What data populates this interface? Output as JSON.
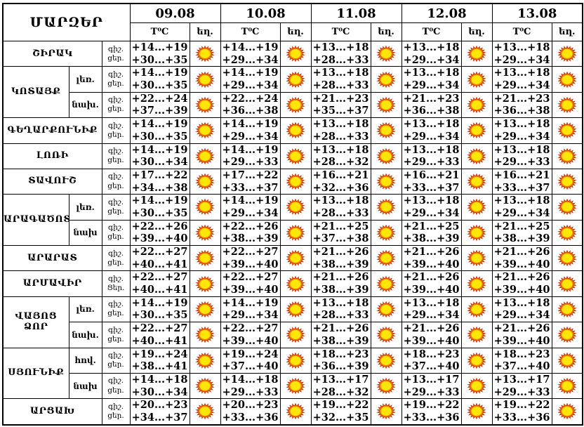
{
  "title": "ՄԱՐԶԵՐ",
  "dates": [
    "09.08",
    "10.08",
    "11.08",
    "12.08",
    "13.08"
  ],
  "col_headers": {
    "temperature": "T⁰C",
    "weather": "եղ."
  },
  "weather_icon": "sun",
  "colors": {
    "border": "#000000",
    "text": "#000000",
    "sun_core": "#ffe606",
    "sun_rays": "#e8500a",
    "sun_ring": "#f08000"
  },
  "regions": [
    {
      "name": "ՇԻՐԱԿ",
      "zones": [
        {
          "zone": "",
          "night_label": "գիշ.",
          "day_label": "ցեր.",
          "cells": [
            {
              "night": "+14...+19",
              "day": "+30...+35",
              "weather": "sun"
            },
            {
              "night": "+14...+19",
              "day": "+29...+34",
              "weather": "sun"
            },
            {
              "night": "+13...+18",
              "day": "+28...+33",
              "weather": "sun"
            },
            {
              "night": "+13...+18",
              "day": "+29...+34",
              "weather": "sun"
            },
            {
              "night": "+13...+18",
              "day": "+29...+34",
              "weather": "sun"
            }
          ]
        }
      ]
    },
    {
      "name": "ԿՈՏԱՅՔ",
      "zones": [
        {
          "zone": "լեռ.",
          "night_label": "գիշ.",
          "day_label": "ցեր.",
          "cells": [
            {
              "night": "+14...+19",
              "day": "+30...+35",
              "weather": "sun"
            },
            {
              "night": "+14...+19",
              "day": "+29...+34",
              "weather": "sun"
            },
            {
              "night": "+13...+18",
              "day": "+28...+33",
              "weather": "sun"
            },
            {
              "night": "+13...+18",
              "day": "+29...+34",
              "weather": "sun"
            },
            {
              "night": "+13...+18",
              "day": "+29...+34",
              "weather": "sun"
            }
          ]
        },
        {
          "zone": "նախ.",
          "night_label": "գիշ.",
          "day_label": "ցեր.",
          "cells": [
            {
              "night": "+22...+24",
              "day": "+37...+39",
              "weather": "sun"
            },
            {
              "night": "+22...+24",
              "day": "+36...+38",
              "weather": "sun"
            },
            {
              "night": "+21...+23",
              "day": "+35...+37",
              "weather": "sun"
            },
            {
              "night": "+21...+23",
              "day": "+36...+38",
              "weather": "sun"
            },
            {
              "night": "+21...+23",
              "day": "+36...+38",
              "weather": "sun"
            }
          ]
        }
      ]
    },
    {
      "name": "ԳԵՂԱՐՔՈՒՆԻՔ",
      "zones": [
        {
          "zone": "",
          "night_label": "գիշ.",
          "day_label": "ցեր.",
          "cells": [
            {
              "night": "+14...+19",
              "day": "+30...+35",
              "weather": "sun"
            },
            {
              "night": "+14...+19",
              "day": "+29...+34",
              "weather": "sun"
            },
            {
              "night": "+13...+18",
              "day": "+28...+33",
              "weather": "sun"
            },
            {
              "night": "+13...+18",
              "day": "+29...+34",
              "weather": "sun"
            },
            {
              "night": "+13...+18",
              "day": "+29...+34",
              "weather": "sun"
            }
          ]
        }
      ]
    },
    {
      "name": "ԼՈՌԻ",
      "zones": [
        {
          "zone": "",
          "night_label": "գիշ.",
          "day_label": "ցեր.",
          "cells": [
            {
              "night": "+14...+19",
              "day": "+30...+34",
              "weather": "sun"
            },
            {
              "night": "+14...+19",
              "day": "+29...+33",
              "weather": "sun"
            },
            {
              "night": "+13...+18",
              "day": "+28...+32",
              "weather": "sun"
            },
            {
              "night": "+13...+18",
              "day": "+29...+33",
              "weather": "sun"
            },
            {
              "night": "+13...+18",
              "day": "+29...+33",
              "weather": "sun"
            }
          ]
        }
      ]
    },
    {
      "name": "ՏԱՎՈՒՇ",
      "zones": [
        {
          "zone": "",
          "night_label": "գիշ.",
          "day_label": "ցեր.",
          "cells": [
            {
              "night": "+17...+22",
              "day": "+34...+38",
              "weather": "sun"
            },
            {
              "night": "+17...+22",
              "day": "+33...+37",
              "weather": "sun"
            },
            {
              "night": "+16...+21",
              "day": "+32...+36",
              "weather": "sun"
            },
            {
              "night": "+16...+21",
              "day": "+33...+37",
              "weather": "sun"
            },
            {
              "night": "+16...+21",
              "day": "+33...+37",
              "weather": "sun"
            }
          ]
        }
      ]
    },
    {
      "name": "ԱՐԱԳԱԾՈՏՆ",
      "zones": [
        {
          "zone": "լեռ.",
          "night_label": "գիշ.",
          "day_label": "ցեր.",
          "cells": [
            {
              "night": "+14...+19",
              "day": "+30...+35",
              "weather": "sun"
            },
            {
              "night": "+14...+19",
              "day": "+29...+34",
              "weather": "sun"
            },
            {
              "night": "+13...+18",
              "day": "+28...+33",
              "weather": "sun"
            },
            {
              "night": "+13...+18",
              "day": "+29...+34",
              "weather": "sun"
            },
            {
              "night": "+13...+18",
              "day": "+29...+34",
              "weather": "sun"
            }
          ]
        },
        {
          "zone": "նախ",
          "night_label": "գիշ.",
          "day_label": "ցեր.",
          "cells": [
            {
              "night": "+22...+26",
              "day": "+39...+40",
              "weather": "sun"
            },
            {
              "night": "+22...+26",
              "day": "+38...+39",
              "weather": "sun"
            },
            {
              "night": "+21...+25",
              "day": "+37...+38",
              "weather": "sun"
            },
            {
              "night": "+21...+25",
              "day": "+38...+39",
              "weather": "sun"
            },
            {
              "night": "+21...+25",
              "day": "+38...+39",
              "weather": "sun"
            }
          ]
        }
      ]
    },
    {
      "name": "ԱՐԱՐԱՏ",
      "zones": [
        {
          "zone": "",
          "night_label": "գիշ.",
          "day_label": "ցեր.",
          "cells": [
            {
              "night": "+22...+27",
              "day": "+40...+41",
              "weather": "sun"
            },
            {
              "night": "+22...+27",
              "day": "+39...+40",
              "weather": "sun"
            },
            {
              "night": "+21...+26",
              "day": "+38...+39",
              "weather": "sun"
            },
            {
              "night": "+21...+26",
              "day": "+39...+40",
              "weather": "sun"
            },
            {
              "night": "+21...+26",
              "day": "+39...+40",
              "weather": "sun"
            }
          ]
        }
      ]
    },
    {
      "name": "ԱՐՄԱՎԻՐ",
      "zones": [
        {
          "zone": "",
          "night_label": "գիշ.",
          "day_label": "Ցեր.",
          "cells": [
            {
              "night": "+22...+27",
              "day": "+40...+41",
              "weather": "sun"
            },
            {
              "night": "+22...+27",
              "day": "+39...+40",
              "weather": "sun"
            },
            {
              "night": "+21...+26",
              "day": "+38...+39",
              "weather": "sun"
            },
            {
              "night": "+21...+26",
              "day": "+39...+40",
              "weather": "sun"
            },
            {
              "night": "+21...+26",
              "day": "+39...+40",
              "weather": "sun"
            }
          ]
        }
      ]
    },
    {
      "name": "ՎԱՅՈՑ ՁՈՐ",
      "zones": [
        {
          "zone": "լեռ.",
          "night_label": "գիշ.",
          "day_label": "ցեր.",
          "cells": [
            {
              "night": "+14...+19",
              "day": "+30...+35",
              "weather": "sun"
            },
            {
              "night": "+14...+19",
              "day": "+29...+34",
              "weather": "sun"
            },
            {
              "night": "+13...+18",
              "day": "+28...+33",
              "weather": "sun"
            },
            {
              "night": "+13...+18",
              "day": "+29...+34",
              "weather": "sun"
            },
            {
              "night": "+13...+18",
              "day": "+29...+34",
              "weather": "sun"
            }
          ]
        },
        {
          "zone": "նախ.",
          "night_label": "գիշ.",
          "day_label": "ցեր.",
          "cells": [
            {
              "night": "+22...+27",
              "day": "+40...+41",
              "weather": "sun"
            },
            {
              "night": "+22...+27",
              "day": "+39...+40",
              "weather": "sun"
            },
            {
              "night": "+21...+26",
              "day": "+38...+39",
              "weather": "sun"
            },
            {
              "night": "+21...+26",
              "day": "+39...+40",
              "weather": "sun"
            },
            {
              "night": "+21...+26",
              "day": "+39...+40",
              "weather": "sun"
            }
          ]
        }
      ]
    },
    {
      "name": "ՍՅՈՒՆԻՔ",
      "zones": [
        {
          "zone": "հով.",
          "night_label": "գիշ.",
          "day_label": "ցեր.",
          "cells": [
            {
              "night": "+19...+24",
              "day": "+38...+41",
              "weather": "sun"
            },
            {
              "night": "+19...+24",
              "day": "+37...+40",
              "weather": "sun"
            },
            {
              "night": "+18...+23",
              "day": "+36...+39",
              "weather": "sun"
            },
            {
              "night": "+18...+23",
              "day": "+37...+40",
              "weather": "sun"
            },
            {
              "night": "+18...+23",
              "day": "+37...+40",
              "weather": "sun"
            }
          ]
        },
        {
          "zone": "նախ",
          "night_label": "գիշ.",
          "day_label": "ցեր.",
          "cells": [
            {
              "night": "+14...+18",
              "day": "+30...+34",
              "weather": "sun"
            },
            {
              "night": "+14...+18",
              "day": "+29...+33",
              "weather": "sun"
            },
            {
              "night": "+13...+17",
              "day": "+28...+32",
              "weather": "sun"
            },
            {
              "night": "+13...+17",
              "day": "+29...+33",
              "weather": "sun"
            },
            {
              "night": "+13...+17",
              "day": "+29...+33",
              "weather": "sun"
            }
          ]
        }
      ]
    },
    {
      "name": "ԱՐՑԱԽ",
      "zones": [
        {
          "zone": "",
          "night_label": "գիշ.",
          "day_label": "ցեր.",
          "cells": [
            {
              "night": "+20...+23",
              "day": "+34...+37",
              "weather": "sun"
            },
            {
              "night": "+20...+23",
              "day": "+33...+36",
              "weather": "sun"
            },
            {
              "night": "+19...+22",
              "day": "+32...+35",
              "weather": "sun"
            },
            {
              "night": "+19...+22",
              "day": "+33...+36",
              "weather": "sun"
            },
            {
              "night": "+19...+22",
              "day": "+33...+36",
              "weather": "sun"
            }
          ]
        }
      ]
    }
  ]
}
